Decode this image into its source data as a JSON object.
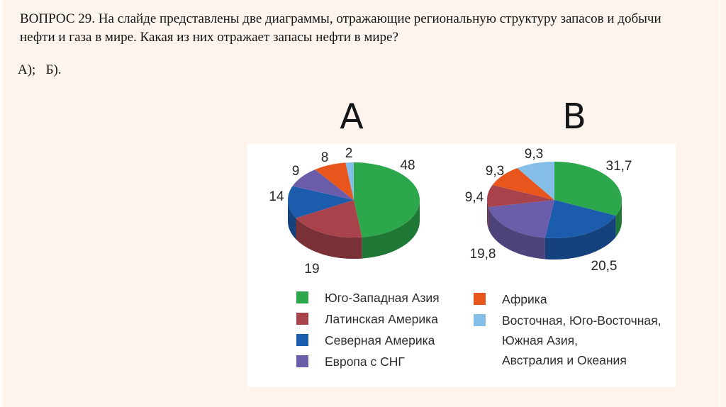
{
  "slide": {
    "background_color": "#fcf4ed",
    "panel_color": "#ffffff"
  },
  "question": {
    "lines": [
      "ВОПРОС 29. На слайде представлены две диаграммы, отражающие региональную структуру запасов и добычи",
      "нефти и газа в мире. Какая из них отражает запасы нефти в мире?"
    ],
    "options_line": "А);   Б)."
  },
  "chart_data": [
    {
      "type": "pie",
      "style": "3d",
      "title": "А",
      "unit": "%",
      "start_angle_deg": 0,
      "direction": "clockwise",
      "slices": [
        {
          "label": "Юго-Западная Азия",
          "value": 48,
          "display": "48",
          "color": "#2ca74b"
        },
        {
          "label": "Латинская Америка",
          "value": 19,
          "display": "19",
          "color": "#a8434b"
        },
        {
          "label": "Северная Америка",
          "value": 14,
          "display": "14",
          "color": "#1b5cad"
        },
        {
          "label": "Европа с СНГ",
          "value": 9,
          "display": "9",
          "color": "#6c5daa"
        },
        {
          "label": "Африка",
          "value": 8,
          "display": "8",
          "color": "#e8561e"
        },
        {
          "label": "Восточная, Юго-Восточная, Южная Азия, Австралия и Океания",
          "value": 2,
          "display": "2",
          "color": "#85bfe7"
        }
      ]
    },
    {
      "type": "pie",
      "style": "3d",
      "title": "В",
      "unit": "%",
      "start_angle_deg": 0,
      "direction": "clockwise",
      "slices": [
        {
          "label": "Юго-Западная Азия",
          "value": 31.7,
          "display": "31,7",
          "color": "#2ca74b"
        },
        {
          "label": "Северная Америка",
          "value": 20.5,
          "display": "20,5",
          "color": "#1b5cad"
        },
        {
          "label": "Европа с СНГ",
          "value": 19.8,
          "display": "19,8",
          "color": "#6c5daa"
        },
        {
          "label": "Латинская Америка",
          "value": 9.4,
          "display": "9,4",
          "color": "#a8434b"
        },
        {
          "label": "Африка",
          "value": 9.3,
          "display": "9,3",
          "color": "#e8561e"
        },
        {
          "label": "Восточная, Юго-Восточная, Южная Азия, Австралия и Океания",
          "value": 9.3,
          "display": "9,3",
          "color": "#85bfe7"
        }
      ]
    }
  ],
  "legend": {
    "left": [
      {
        "lines": [
          "Юго-Западная Азия"
        ],
        "color": "#2ca74b"
      },
      {
        "lines": [
          "Латинская Америка"
        ],
        "color": "#a8434b"
      },
      {
        "lines": [
          "Северная Америка"
        ],
        "color": "#1b5cad"
      },
      {
        "lines": [
          "Европа с СНГ"
        ],
        "color": "#6c5daa"
      }
    ],
    "right": [
      {
        "lines": [
          "Африка"
        ],
        "color": "#e8561e"
      },
      {
        "lines": [
          "Восточная, Юго-Восточная,",
          "Южная Азия,",
          "Австралия и Океания"
        ],
        "color": "#85bfe7"
      }
    ]
  }
}
